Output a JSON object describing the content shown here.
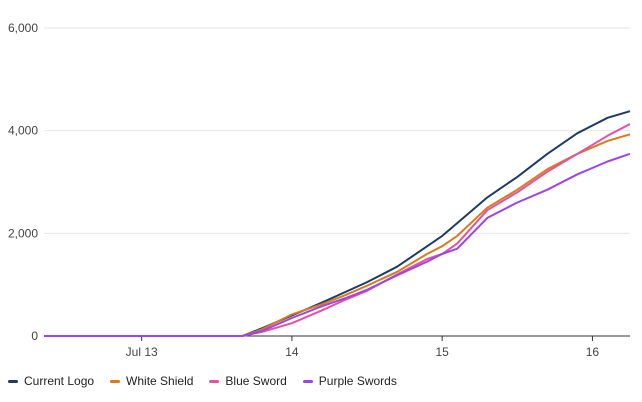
{
  "chart_data": {
    "type": "line",
    "y_ticks": [
      "0",
      "2,000",
      "4,000",
      "6,000"
    ],
    "ylim": [
      0,
      6000
    ],
    "x_ticks": [
      "Jul 13",
      "14",
      "15",
      "16"
    ],
    "grid": true,
    "legend_position": "bottom-left",
    "series": [
      {
        "name": "Current Logo",
        "color": "#1f3b63",
        "points": [
          [
            12.35,
            0
          ],
          [
            13.67,
            0
          ],
          [
            13.8,
            150
          ],
          [
            14.0,
            400
          ],
          [
            14.2,
            650
          ],
          [
            14.35,
            850
          ],
          [
            14.5,
            1050
          ],
          [
            14.7,
            1350
          ],
          [
            14.9,
            1750
          ],
          [
            15.0,
            1950
          ],
          [
            15.1,
            2200
          ],
          [
            15.3,
            2700
          ],
          [
            15.5,
            3100
          ],
          [
            15.7,
            3550
          ],
          [
            15.9,
            3950
          ],
          [
            16.1,
            4250
          ],
          [
            16.25,
            4380
          ]
        ]
      },
      {
        "name": "White Shield",
        "color": "#d97b1a",
        "points": [
          [
            12.35,
            0
          ],
          [
            13.67,
            0
          ],
          [
            13.8,
            130
          ],
          [
            14.0,
            420
          ],
          [
            14.2,
            620
          ],
          [
            14.35,
            790
          ],
          [
            14.5,
            980
          ],
          [
            14.7,
            1250
          ],
          [
            14.9,
            1600
          ],
          [
            15.0,
            1750
          ],
          [
            15.1,
            1950
          ],
          [
            15.3,
            2500
          ],
          [
            15.5,
            2850
          ],
          [
            15.7,
            3250
          ],
          [
            15.9,
            3550
          ],
          [
            16.1,
            3800
          ],
          [
            16.25,
            3930
          ]
        ]
      },
      {
        "name": "Blue Sword",
        "color": "#e052a5",
        "points": [
          [
            12.35,
            0
          ],
          [
            13.67,
            0
          ],
          [
            13.8,
            80
          ],
          [
            14.0,
            250
          ],
          [
            14.2,
            500
          ],
          [
            14.35,
            700
          ],
          [
            14.5,
            880
          ],
          [
            14.7,
            1200
          ],
          [
            14.9,
            1500
          ],
          [
            15.0,
            1600
          ],
          [
            15.1,
            1800
          ],
          [
            15.3,
            2450
          ],
          [
            15.5,
            2800
          ],
          [
            15.7,
            3200
          ],
          [
            15.9,
            3550
          ],
          [
            16.1,
            3900
          ],
          [
            16.25,
            4130
          ]
        ]
      },
      {
        "name": "Purple Swords",
        "color": "#9b45e8",
        "points": [
          [
            12.35,
            0
          ],
          [
            13.67,
            0
          ],
          [
            13.8,
            100
          ],
          [
            14.0,
            350
          ],
          [
            14.2,
            580
          ],
          [
            14.35,
            730
          ],
          [
            14.5,
            900
          ],
          [
            14.7,
            1180
          ],
          [
            14.9,
            1450
          ],
          [
            15.0,
            1600
          ],
          [
            15.1,
            1700
          ],
          [
            15.3,
            2300
          ],
          [
            15.5,
            2600
          ],
          [
            15.7,
            2850
          ],
          [
            15.9,
            3150
          ],
          [
            16.1,
            3400
          ],
          [
            16.25,
            3550
          ]
        ]
      }
    ]
  }
}
